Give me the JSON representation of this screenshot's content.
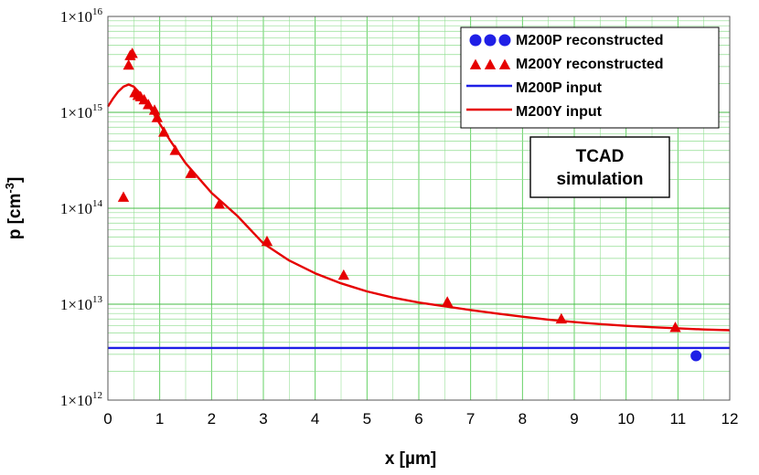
{
  "chart_data": {
    "type": "line",
    "title": "",
    "xlabel": "x [µm]",
    "ylabel_base": "p [cm",
    "ylabel_exp": "-3",
    "ylabel_close": "]",
    "xlim": [
      0,
      12
    ],
    "ylim_log10": [
      12,
      16
    ],
    "y_scale": "log",
    "x_ticks": [
      "0",
      "1",
      "2",
      "3",
      "4",
      "5",
      "6",
      "7",
      "8",
      "9",
      "10",
      "11",
      "12"
    ],
    "y_ticks": [
      {
        "mantissa": "1×10",
        "exp": "12",
        "log10": 12
      },
      {
        "mantissa": "1×10",
        "exp": "13",
        "log10": 13
      },
      {
        "mantissa": "1×10",
        "exp": "14",
        "log10": 14
      },
      {
        "mantissa": "1×10",
        "exp": "15",
        "log10": 15
      },
      {
        "mantissa": "1×10",
        "exp": "16",
        "log10": 16
      }
    ],
    "grid": true,
    "legend_position": "top-right",
    "series": [
      {
        "name": "M200P reconstructed",
        "kind": "marker",
        "marker": "circle",
        "color": "#1f1fe6",
        "points": [
          [
            11.35,
            2900000000000.0
          ]
        ]
      },
      {
        "name": "M200Y reconstructed",
        "kind": "marker",
        "marker": "triangle",
        "color": "#e60000",
        "points": [
          [
            0.3,
            130000000000000.0
          ],
          [
            0.4,
            3100000000000000.0
          ],
          [
            0.43,
            3900000000000000.0
          ],
          [
            0.47,
            4100000000000000.0
          ],
          [
            0.52,
            1600000000000000.0
          ],
          [
            0.58,
            1500000000000000.0
          ],
          [
            0.63,
            1450000000000000.0
          ],
          [
            0.7,
            1350000000000000.0
          ],
          [
            0.78,
            1200000000000000.0
          ],
          [
            0.9,
            1050000000000000.0
          ],
          [
            0.95,
            880000000000000.0
          ],
          [
            1.08,
            620000000000000.0
          ],
          [
            1.3,
            400000000000000.0
          ],
          [
            1.6,
            230000000000000.0
          ],
          [
            2.15,
            110000000000000.0
          ],
          [
            3.07,
            45000000000000.0
          ],
          [
            4.55,
            20000000000000.0
          ],
          [
            6.55,
            10500000000000.0
          ],
          [
            8.75,
            7000000000000.0
          ],
          [
            10.95,
            5700000000000.0
          ]
        ]
      },
      {
        "name": "M200P input",
        "kind": "line",
        "color": "#1f1fe6",
        "points": [
          [
            0,
            3500000000000.0
          ],
          [
            12,
            3500000000000.0
          ]
        ]
      },
      {
        "name": "M200Y input",
        "kind": "line",
        "color": "#e60000",
        "points": [
          [
            0,
            1150000000000000.0
          ],
          [
            0.1,
            1400000000000000.0
          ],
          [
            0.2,
            1650000000000000.0
          ],
          [
            0.3,
            1850000000000000.0
          ],
          [
            0.4,
            1950000000000000.0
          ],
          [
            0.5,
            1850000000000000.0
          ],
          [
            0.6,
            1620000000000000.0
          ],
          [
            0.7,
            1380000000000000.0
          ],
          [
            0.8,
            1150000000000000.0
          ],
          [
            1.0,
            760000000000000.0
          ],
          [
            1.2,
            510000000000000.0
          ],
          [
            1.5,
            295000000000000.0
          ],
          [
            2.0,
            145000000000000.0
          ],
          [
            2.5,
            83000000000000.0
          ],
          [
            3.0,
            43000000000000.0
          ],
          [
            3.5,
            28500000000000.0
          ],
          [
            4.0,
            21000000000000.0
          ],
          [
            4.5,
            16500000000000.0
          ],
          [
            5.0,
            13600000000000.0
          ],
          [
            5.5,
            11700000000000.0
          ],
          [
            6.0,
            10400000000000.0
          ],
          [
            6.5,
            9500000000000.0
          ],
          [
            7.0,
            8700000000000.0
          ],
          [
            7.5,
            8000000000000.0
          ],
          [
            8.0,
            7400000000000.0
          ],
          [
            8.5,
            6900000000000.0
          ],
          [
            9.0,
            6500000000000.0
          ],
          [
            9.5,
            6200000000000.0
          ],
          [
            10.0,
            5950000000000.0
          ],
          [
            10.5,
            5750000000000.0
          ],
          [
            11.0,
            5600000000000.0
          ],
          [
            11.5,
            5450000000000.0
          ],
          [
            12.0,
            5350000000000.0
          ]
        ]
      }
    ],
    "annotation": {
      "line1": "TCAD",
      "line2": "simulation"
    }
  }
}
